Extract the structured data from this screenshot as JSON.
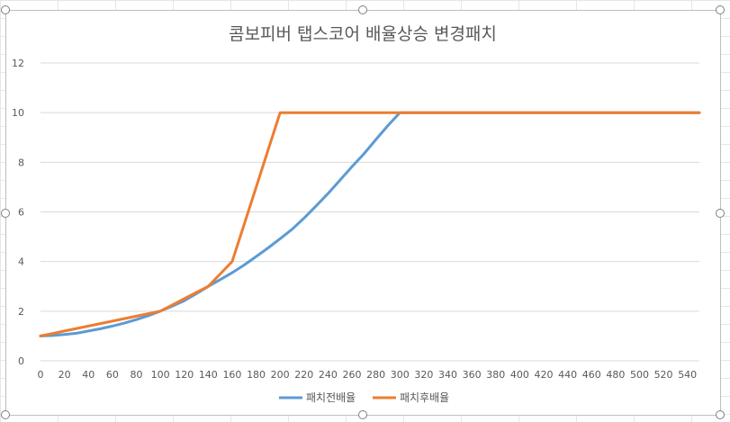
{
  "chart_data": {
    "type": "line",
    "title": "콤보피버 탭스코어 배율상승 변경패치",
    "xlabel": "",
    "ylabel": "",
    "x": [
      0,
      10,
      20,
      30,
      40,
      50,
      60,
      70,
      80,
      90,
      100,
      110,
      120,
      130,
      140,
      150,
      160,
      170,
      180,
      190,
      200,
      210,
      220,
      230,
      240,
      250,
      260,
      270,
      280,
      290,
      300,
      310,
      320,
      330,
      340,
      350,
      360,
      370,
      380,
      390,
      400,
      410,
      420,
      430,
      440,
      450,
      460,
      470,
      480,
      490,
      500,
      510,
      520,
      530,
      540,
      550
    ],
    "xticks": [
      "0",
      "20",
      "40",
      "60",
      "80",
      "100",
      "120",
      "140",
      "160",
      "180",
      "200",
      "220",
      "240",
      "260",
      "280",
      "300",
      "320",
      "340",
      "360",
      "380",
      "400",
      "420",
      "440",
      "460",
      "480",
      "500",
      "520",
      "540"
    ],
    "yticks": [
      "0",
      "2",
      "4",
      "6",
      "8",
      "10",
      "12"
    ],
    "xlim": [
      0,
      550
    ],
    "ylim": [
      0,
      12
    ],
    "grid": true,
    "legend_position": "bottom",
    "series": [
      {
        "name": "패치전배율",
        "color": "#5b9bd5",
        "values": [
          1,
          1.02,
          1.06,
          1.11,
          1.2,
          1.29,
          1.4,
          1.52,
          1.66,
          1.82,
          2,
          2.2,
          2.42,
          2.7,
          3,
          3.27,
          3.55,
          3.86,
          4.2,
          4.55,
          4.92,
          5.3,
          5.75,
          6.24,
          6.74,
          7.28,
          7.82,
          8.34,
          8.92,
          9.48,
          10,
          10,
          10,
          10,
          10,
          10,
          10,
          10,
          10,
          10,
          10,
          10,
          10,
          10,
          10,
          10,
          10,
          10,
          10,
          10,
          10,
          10,
          10,
          10,
          10,
          10
        ]
      },
      {
        "name": "패치후배율",
        "color": "#ed7d31",
        "values": [
          1,
          1.1,
          1.2,
          1.3,
          1.4,
          1.5,
          1.6,
          1.7,
          1.8,
          1.9,
          2,
          2.25,
          2.5,
          2.75,
          3,
          3.5,
          4,
          5.5,
          7,
          8.5,
          10,
          10,
          10,
          10,
          10,
          10,
          10,
          10,
          10,
          10,
          10,
          10,
          10,
          10,
          10,
          10,
          10,
          10,
          10,
          10,
          10,
          10,
          10,
          10,
          10,
          10,
          10,
          10,
          10,
          10,
          10,
          10,
          10,
          10,
          10,
          10
        ]
      }
    ]
  }
}
